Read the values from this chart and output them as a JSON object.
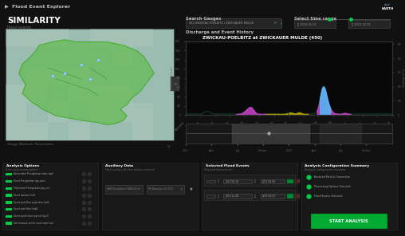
{
  "bg_color": "#111111",
  "title_bar_color": "#0a0a0a",
  "left_panel_color": "#0d0d0d",
  "right_panel_color": "#141414",
  "chart_bg": "#080808",
  "timeline_bg": "#1a1a1a",
  "bottom_bg": "#0d0d0d",
  "bottom_panel_color": "#161616",
  "header_text": "Flood Event Explorer",
  "similarity_text": "SIMILARITY",
  "flood_events_text": "flood events",
  "chart_title": "ZWICKAU-POELBITZ at ZWICKAUER MULDE (450)",
  "text_color": "#bbbbbb",
  "dim_text": "#666666",
  "green_accent": "#00cc44",
  "purple_color": "#cc44cc",
  "yellow_color": "#bbaa00",
  "cyan_color": "#44ccff",
  "map_water": "#9bbcb0",
  "map_land": "#c8d8c0",
  "map_green_fill": "#66bb55",
  "map_green_edge": "#44aa33",
  "button_green": "#00aa33",
  "logo_dark": "#003355",
  "logo_blue": "#0055aa",
  "input_bg": "#252525",
  "input_border": "#444444",
  "legend_flood": "#bbaa00",
  "legend_return": "#44ccff",
  "legend_discharge": "#006644",
  "x_months": [
    "September",
    "October",
    "November",
    "December",
    "2013",
    "February",
    "March",
    "April",
    "May",
    "June",
    "July",
    "August",
    "September",
    "October",
    "November"
  ],
  "x2_labels": [
    "2013",
    "April",
    "July",
    "October",
    "2014",
    "April",
    "July",
    "October"
  ],
  "bottom_sections": [
    "Analysis Options",
    "Auxiliary Data",
    "Selected Flood Events",
    "Analysis Configuration Summary"
  ],
  "analysis_options": [
    "Antecedent Precipitation Index (api)",
    "Event Precipitation (pp_max)",
    "Total event Precipitation (pp_vol)",
    "Event duration (nd)",
    "Event peak flow properties (pcft)",
    "Event start flow (bsfp)",
    "Event peak return period (qpcl)",
    "Soil moisture at the event start (sm)"
  ],
  "analysis_summary": [
    "Backend Module Connection",
    "Processing Options Selected",
    "Flood Events Selected"
  ],
  "gauge_label": "Gauge Network: Parameters",
  "search_text": "450 ZWICKAU-POELBITZ / ZWICKAUER MULDE",
  "time_start": "2012-01-01",
  "time_end": "2013-12-31",
  "discharge_label": "Discharge and Event History",
  "aux_texts": [
    "DWD_Precipitation / SWA 2013",
    "IFS_Reanalysis / EC 2013"
  ],
  "event_dates": [
    [
      "2013-06-18",
      "2013-06-00"
    ],
    [
      "2013-11-28",
      "2013-06-01"
    ]
  ]
}
